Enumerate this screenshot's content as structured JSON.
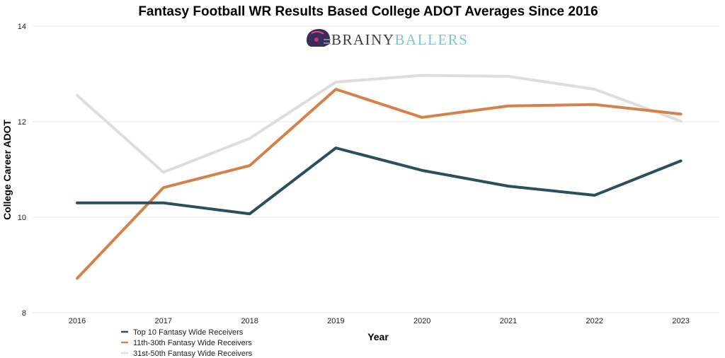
{
  "chart_data": {
    "type": "line",
    "title": "Fantasy Football WR Results Based College ADOT Averages Since 2016",
    "xlabel": "Year",
    "ylabel": "College Career ADOT",
    "categories": [
      "2016",
      "2017",
      "2018",
      "2019",
      "2020",
      "2021",
      "2022",
      "2023"
    ],
    "ylim": [
      8,
      14
    ],
    "yticks": [
      8,
      10,
      12,
      14
    ],
    "grid": true,
    "legend_position": "bottom-left",
    "series": [
      {
        "name": "Top 10 Fantasy Wide Receivers",
        "color": "#2c4f5e",
        "values": [
          10.3,
          10.3,
          10.07,
          11.45,
          10.98,
          10.65,
          10.46,
          11.18
        ]
      },
      {
        "name": "11th-30th Fantasy Wide Receivers",
        "color": "#d5814a",
        "values": [
          8.72,
          10.62,
          11.08,
          12.68,
          12.09,
          12.33,
          12.36,
          12.16
        ]
      },
      {
        "name": "31st-50th Fantasy Wide Receivers",
        "color": "#dddddd",
        "values": [
          12.55,
          10.94,
          11.65,
          12.83,
          12.97,
          12.95,
          12.68,
          12.01
        ]
      }
    ]
  },
  "logo": {
    "part1": "BRAINY",
    "part2": "BALLERS",
    "color1": "#3a3a4a",
    "color2": "#7cc4d6"
  }
}
